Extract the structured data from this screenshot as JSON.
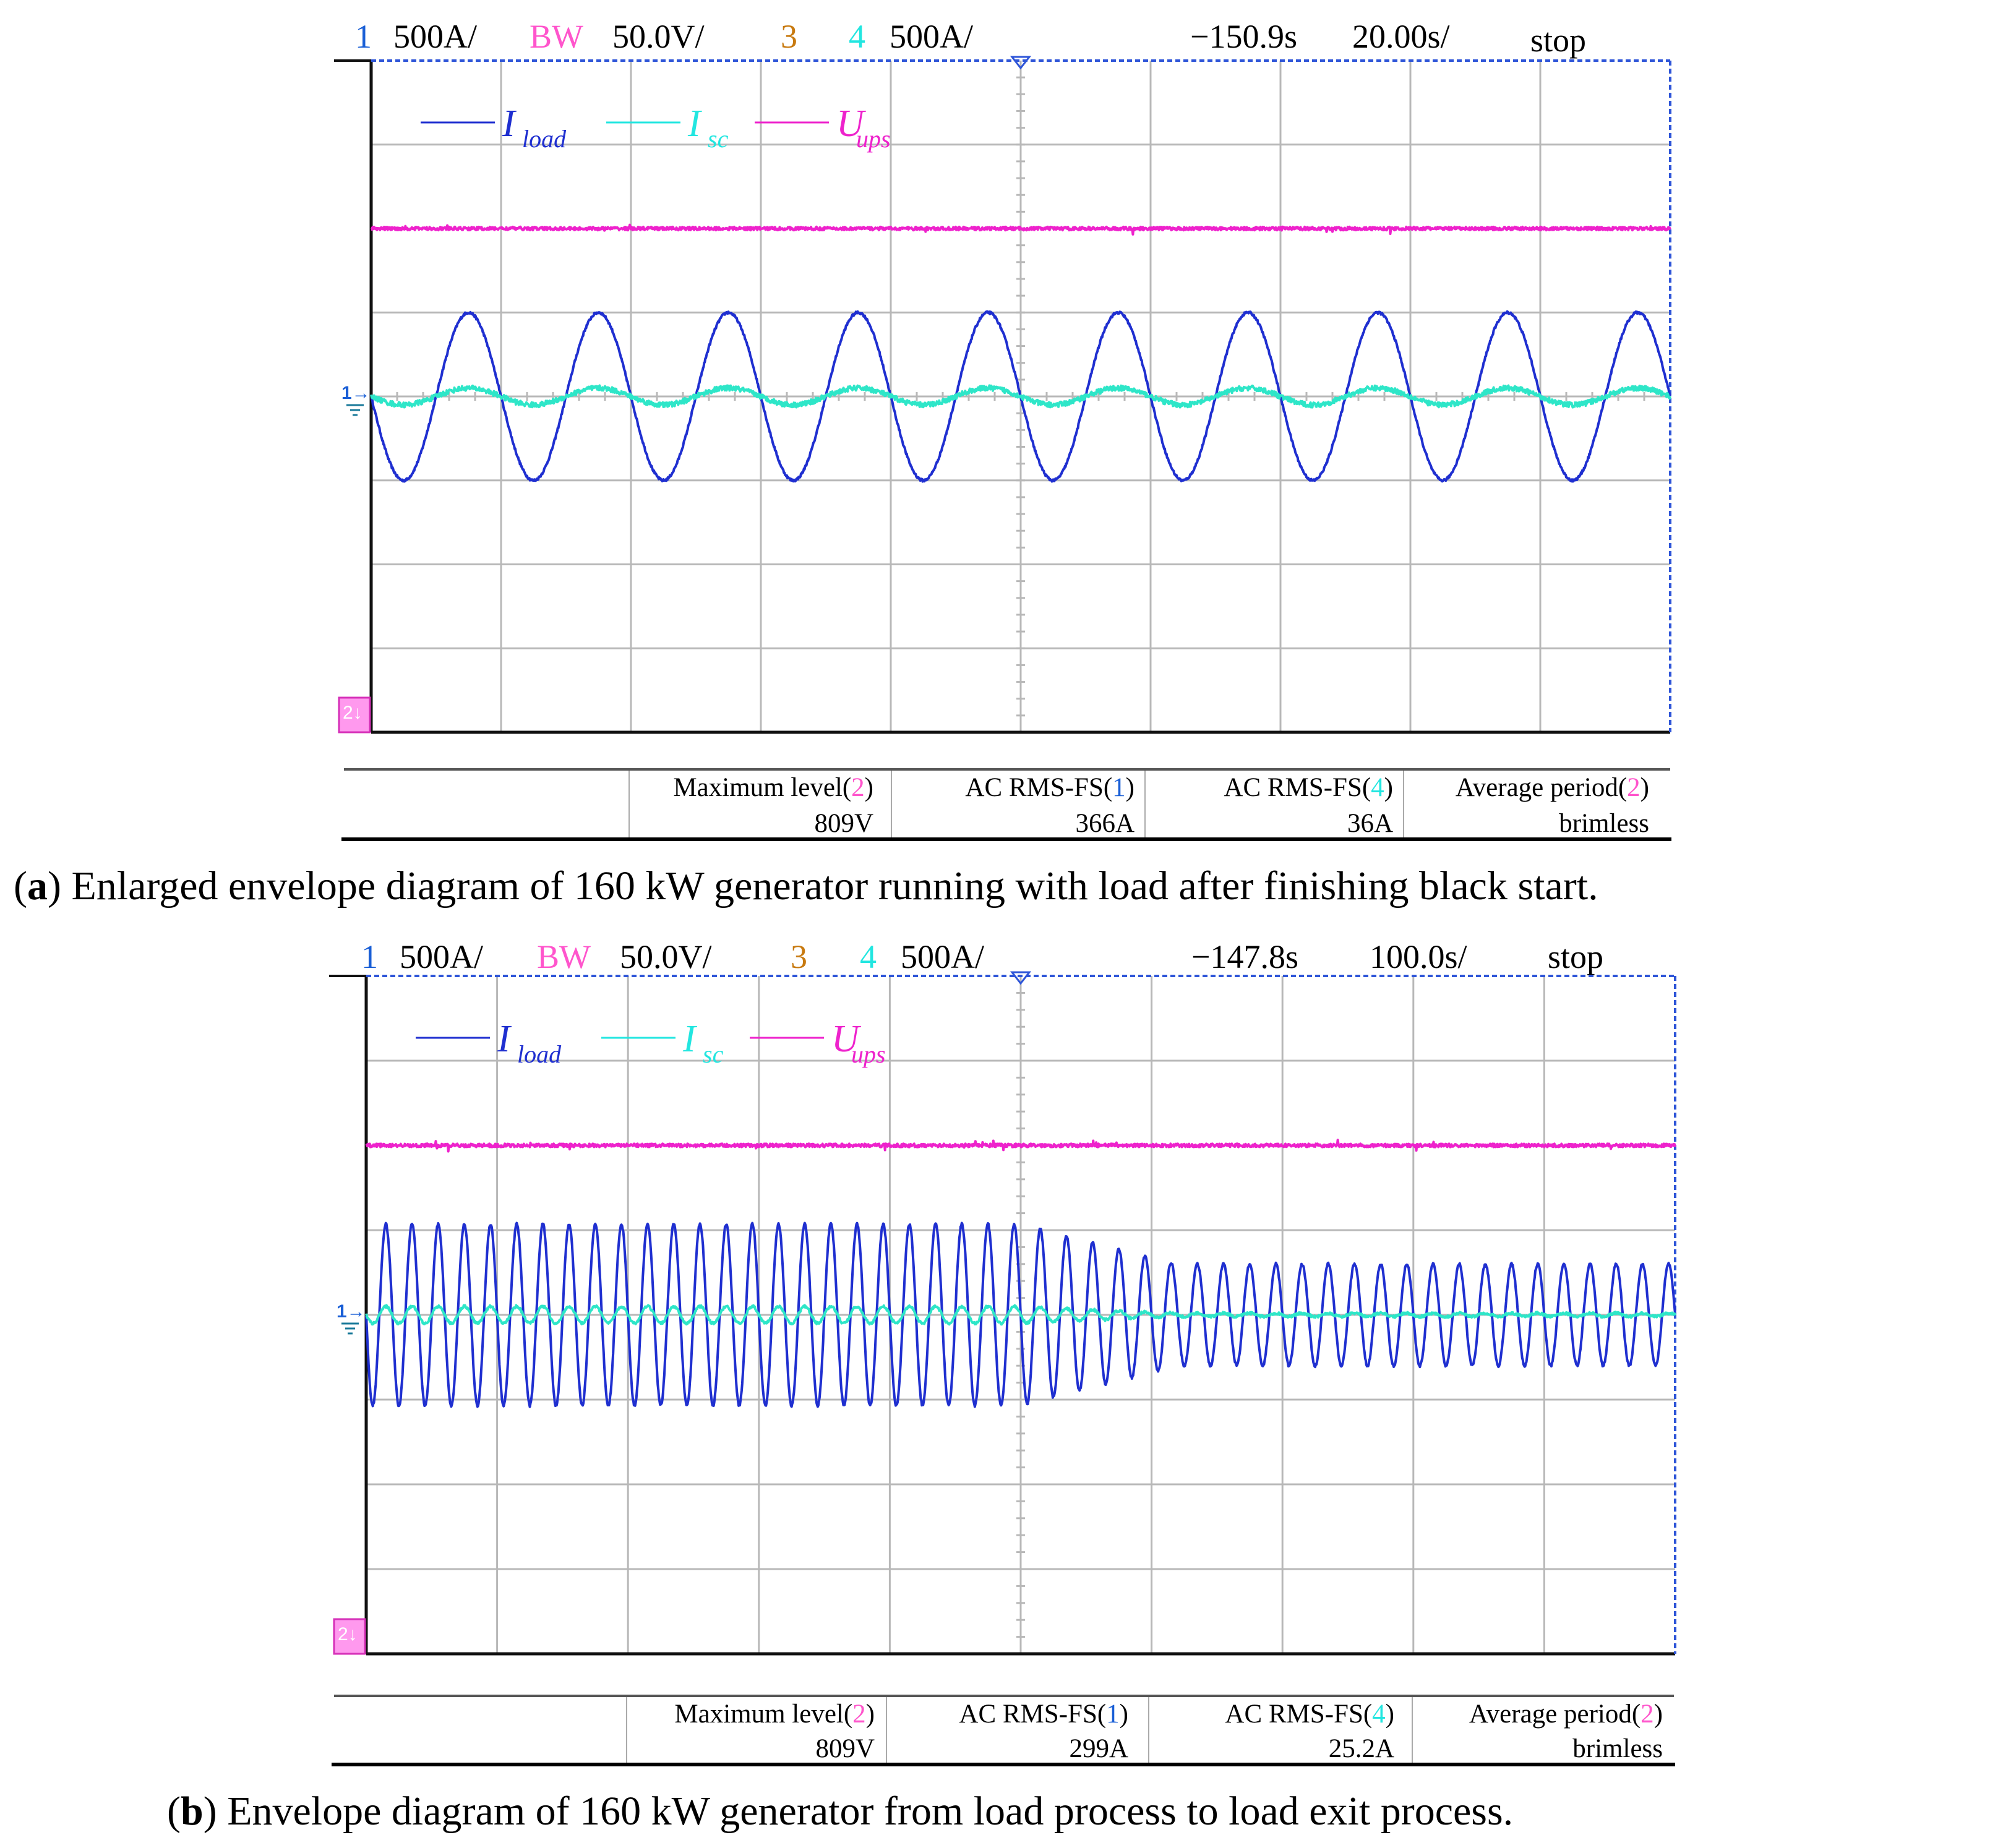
{
  "colors": {
    "ch1": "#1f2fd0",
    "ch1_label": "#1a5fd6",
    "bw": "#ff55cc",
    "ch3": "#c87a10",
    "ch4": "#22e6e0",
    "upsTrace": "#ee22cc",
    "iscTrace": "#2ee6c8",
    "grid": "#b8b8b8",
    "frame": "#111111"
  },
  "panels": [
    {
      "header": {
        "ch1_num": "1",
        "ch1_scale": "500A/",
        "ch2_name": "BW",
        "ch2_scale": "50.0V/",
        "ch3_num": "3",
        "ch4_num": "4",
        "ch4_scale": "500A/",
        "time_offset": "−150.9s",
        "time_div": "20.00s/",
        "run_state": "stop"
      },
      "legend": {
        "load_main": "I",
        "load_sub": "load",
        "sc_main": "I",
        "sc_sub": "sc",
        "ups_main": "U",
        "ups_sub": "ups"
      },
      "markers": {
        "ch1": "1",
        "ch2": "2"
      },
      "measurements": [
        {
          "label": "Maximum level(",
          "ch": "2",
          "close": ")",
          "value": "809V"
        },
        {
          "label": "AC RMS-FS(",
          "ch": "1",
          "close": ")",
          "value": "366A"
        },
        {
          "label": "AC RMS-FS(",
          "ch": "4",
          "close": ")",
          "value": "36A"
        },
        {
          "label": "Average period(",
          "ch": "2",
          "close": ")",
          "value": "brimless"
        }
      ],
      "caption": {
        "tag": "a",
        "text": " Enlarged envelope diagram of 160 kW generator running with load after finishing black start."
      }
    },
    {
      "header": {
        "ch1_num": "1",
        "ch1_scale": "500A/",
        "ch2_name": "BW",
        "ch2_scale": "50.0V/",
        "ch3_num": "3",
        "ch4_num": "4",
        "ch4_scale": "500A/",
        "time_offset": "−147.8s",
        "time_div": "100.0s/",
        "run_state": "stop"
      },
      "legend": {
        "load_main": "I",
        "load_sub": "load",
        "sc_main": "I",
        "sc_sub": "sc",
        "ups_main": "U",
        "ups_sub": "ups"
      },
      "markers": {
        "ch1": "1",
        "ch2": "2"
      },
      "measurements": [
        {
          "label": "Maximum level(",
          "ch": "2",
          "close": ")",
          "value": "809V"
        },
        {
          "label": "AC RMS-FS(",
          "ch": "1",
          "close": ")",
          "value": "299A"
        },
        {
          "label": "AC RMS-FS(",
          "ch": "4",
          "close": ")",
          "value": "25.2A"
        },
        {
          "label": "Average period(",
          "ch": "2",
          "close": ")",
          "value": "brimless"
        }
      ],
      "caption": {
        "tag": "b",
        "text": " Envelope diagram of 160 kW generator from load process to load exit process."
      }
    }
  ],
  "chart_data": [
    {
      "type": "line",
      "grid": true,
      "x_divisions": 10,
      "y_divisions": 8,
      "series": [
        {
          "name": "I_load",
          "color": "ch1",
          "center_div": 4.0,
          "amplitude_div": 1.0,
          "cycles": 10,
          "start_phase": "falling-through-zero"
        },
        {
          "name": "I_sc",
          "color": "ch4",
          "center_div": 4.0,
          "amplitude_div": 0.1,
          "cycles": 10,
          "noise_div": 0.03
        },
        {
          "name": "U_ups",
          "color": "ch2",
          "level_div": 6.0,
          "noise_div": 0.02
        }
      ]
    },
    {
      "type": "line",
      "grid": true,
      "x_divisions": 10,
      "y_divisions": 8,
      "series": [
        {
          "name": "I_load",
          "color": "ch1",
          "center_div": 4.0,
          "cycles": 50,
          "envelope": [
            {
              "x_div": 0,
              "amplitude_div": 1.07
            },
            {
              "x_div": 5.0,
              "amplitude_div": 1.07
            },
            {
              "x_div": 6.2,
              "amplitude_div": 0.6
            },
            {
              "x_div": 10,
              "amplitude_div": 0.6
            }
          ]
        },
        {
          "name": "I_sc",
          "color": "ch4",
          "center_div": 4.0,
          "cycles": 50,
          "envelope": [
            {
              "x_div": 0,
              "amplitude_div": 0.1
            },
            {
              "x_div": 5.0,
              "amplitude_div": 0.1
            },
            {
              "x_div": 6.2,
              "amplitude_div": 0.02
            },
            {
              "x_div": 10,
              "amplitude_div": 0.02
            }
          ]
        },
        {
          "name": "U_ups",
          "color": "ch2",
          "level_div": 6.0,
          "noise_div": 0.02
        }
      ]
    }
  ]
}
